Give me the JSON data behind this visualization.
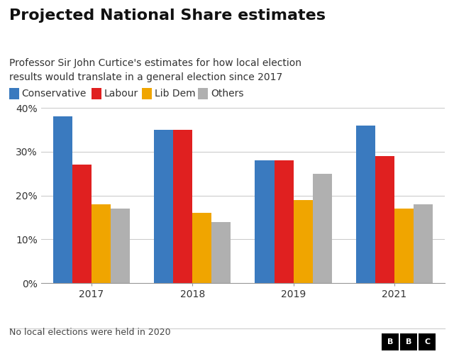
{
  "title": "Projected National Share estimates",
  "subtitle": "Professor Sir John Curtice's estimates for how local election\nresults would translate in a general election since 2017",
  "footnote": "No local elections were held in 2020",
  "years": [
    "2017",
    "2018",
    "2019",
    "2021"
  ],
  "series": {
    "Conservative": [
      38,
      35,
      28,
      36
    ],
    "Labour": [
      27,
      35,
      28,
      29
    ],
    "Lib Dem": [
      18,
      16,
      19,
      17
    ],
    "Others": [
      17,
      14,
      25,
      18
    ]
  },
  "colors": {
    "Conservative": "#3a7abf",
    "Labour": "#e02020",
    "Lib Dem": "#f0a500",
    "Others": "#b0b0b0"
  },
  "ylim": [
    0,
    42
  ],
  "yticks": [
    0,
    10,
    20,
    30,
    40
  ],
  "ytick_labels": [
    "0%",
    "10%",
    "20%",
    "30%",
    "40%"
  ],
  "background_color": "#ffffff",
  "title_fontsize": 16,
  "subtitle_fontsize": 10,
  "legend_fontsize": 10,
  "axis_fontsize": 10,
  "footnote_fontsize": 9,
  "bbc_logo_text": "BBC"
}
